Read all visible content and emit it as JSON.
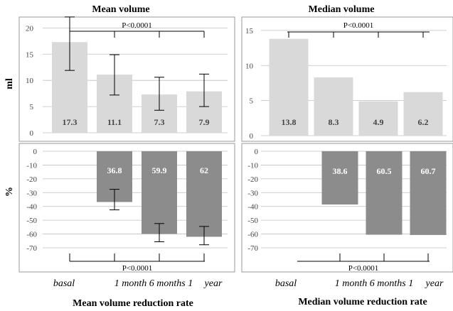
{
  "figure": {
    "left_titles": {
      "top": "Mean volume",
      "bottom": "Mean volume reduction rate"
    },
    "right_titles": {
      "top": "Median volume",
      "bottom": "Median volume reduction rate"
    },
    "row_labels": {
      "top": "ml",
      "bottom": "%"
    },
    "x_categories": [
      "basal",
      "1 month",
      "6 months",
      "1 year"
    ],
    "x_axis_text": [
      "basal",
      "1 month 6 months 1",
      "year"
    ]
  },
  "colors": {
    "light_bar": "#d9d9d9",
    "dark_bar": "#8c8c8c",
    "frame": "#9a9a9a",
    "grid": "#bfbfbf"
  },
  "chart_data": [
    {
      "id": "mean_volume",
      "type": "bar",
      "title": "Mean volume",
      "ylabel": "ml",
      "categories": [
        "basal",
        "1 month",
        "6 months",
        "1 year"
      ],
      "values": [
        17.3,
        11.1,
        7.3,
        7.9
      ],
      "data_labels": [
        "17.3",
        "11.1",
        "7.3",
        "7.9"
      ],
      "error_bars": [
        [
          11.9,
          22.1
        ],
        [
          7.2,
          14.9
        ],
        [
          4.3,
          10.6
        ],
        [
          5.0,
          11.2
        ]
      ],
      "ylim": [
        0,
        21
      ],
      "yticks": [
        0,
        5,
        10,
        15,
        20
      ],
      "ytick_labels": [
        "0",
        "5",
        "10",
        "15",
        "20"
      ],
      "significance": "P<0.0001"
    },
    {
      "id": "median_volume",
      "type": "bar",
      "title": "Median volume",
      "categories": [
        "basal",
        "1 month",
        "6 months",
        "1 year"
      ],
      "values": [
        13.8,
        8.3,
        4.9,
        6.2
      ],
      "data_labels": [
        "13.8",
        "8.3",
        "4.9",
        "6.2"
      ],
      "ylim": [
        0,
        16
      ],
      "yticks": [
        0,
        5,
        10,
        15
      ],
      "ytick_labels": [
        "0",
        "5",
        "10",
        "15"
      ],
      "significance": "P<0.0001"
    },
    {
      "id": "mean_reduction",
      "type": "bar",
      "title": "Mean volume reduction rate",
      "ylabel": "%",
      "categories": [
        "basal",
        "1 month",
        "6 months",
        "1 year"
      ],
      "values": [
        null,
        -36.8,
        -59.9,
        -62
      ],
      "data_labels": [
        "",
        "36.8",
        "59.9",
        "62"
      ],
      "error_bars": [
        null,
        [
          -42.5,
          -27.6
        ],
        [
          -65.6,
          -52.4
        ],
        [
          -67.8,
          -54.5
        ]
      ],
      "ylim": [
        -70,
        0
      ],
      "yticks": [
        0,
        -10,
        -20,
        -30,
        -40,
        -50,
        -60,
        -70
      ],
      "ytick_labels": [
        "0",
        "-10",
        "-20",
        "-30",
        "-40",
        "-50",
        "-60",
        "-70"
      ],
      "significance": "P<0.0001"
    },
    {
      "id": "median_reduction",
      "type": "bar",
      "title": "Median volume reduction rate",
      "categories": [
        "basal",
        "1 month",
        "6 months",
        "1 year"
      ],
      "values": [
        null,
        -38.6,
        -60.5,
        -60.7
      ],
      "data_labels": [
        "",
        "38.6",
        "60.5",
        "60.7"
      ],
      "ylim": [
        -70,
        0
      ],
      "yticks": [
        0,
        -10,
        -20,
        -30,
        -40,
        -50,
        -60,
        -70
      ],
      "ytick_labels": [
        "0",
        "-10",
        "-20",
        "-30",
        "-40",
        "-50",
        "-60",
        "-70"
      ],
      "significance": "P<0.0001"
    }
  ]
}
